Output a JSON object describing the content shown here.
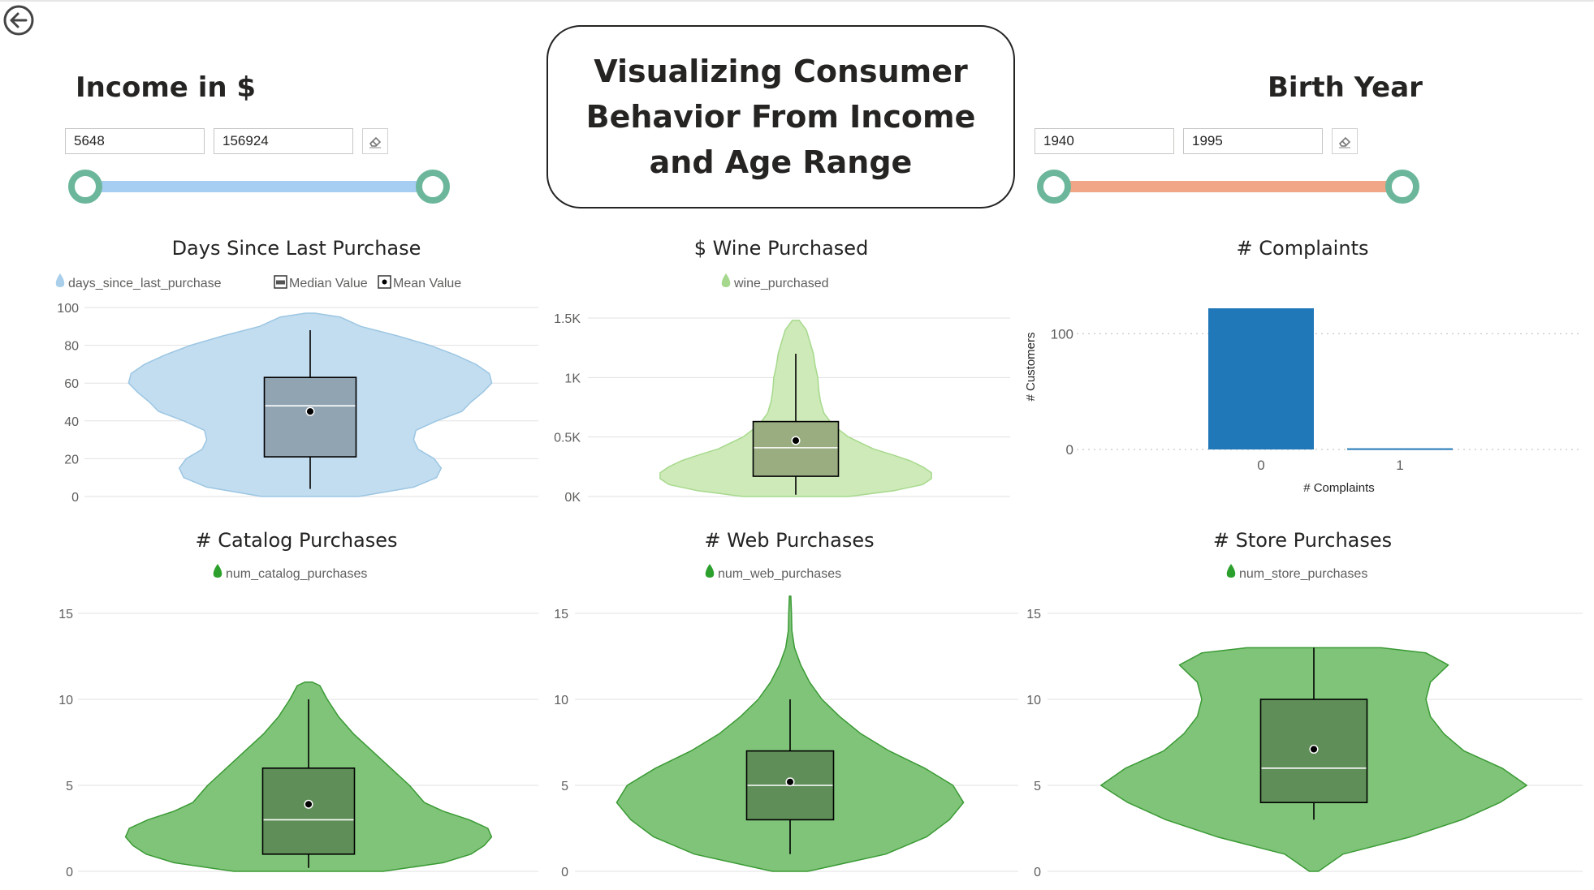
{
  "page_title": "Visualizing Consumer Behavior From Income and Age Range",
  "back_button": {
    "icon": "back-arrow-icon"
  },
  "income_slicer": {
    "title": "Income in $",
    "min_value": "5648",
    "max_value": "156924",
    "min_fraction": 0,
    "max_fraction": 1,
    "color": "#a6cdf2",
    "eraser_icon": "eraser-icon"
  },
  "birth_year_slicer": {
    "title": "Birth Year",
    "min_value": "1940",
    "max_value": "1995",
    "min_fraction": 0,
    "max_fraction": 1,
    "color": "#f0a687",
    "eraser_icon": "eraser-icon"
  },
  "handle_color": "#6cb79b",
  "chart_data": [
    {
      "id": "days",
      "type": "violin",
      "title": "Days Since Last Purchase",
      "legend": [
        "days_since_last_purchase",
        "Median Value",
        "Mean Value"
      ],
      "legend_color": "#a9cfea",
      "fill": "#c2ddef",
      "stroke": "#9cc6e3",
      "box_fill": "#91a4b2",
      "y_ticks": [
        0,
        20,
        40,
        60,
        80,
        100
      ],
      "y_tick_labels": [
        "0",
        "20",
        "40",
        "60",
        "80",
        "100"
      ],
      "ylim": [
        0,
        100
      ],
      "grid": true,
      "density": [
        [
          0,
          0.21
        ],
        [
          5,
          0.45
        ],
        [
          10,
          0.55
        ],
        [
          15,
          0.57
        ],
        [
          20,
          0.54
        ],
        [
          25,
          0.47
        ],
        [
          30,
          0.45
        ],
        [
          35,
          0.46
        ],
        [
          40,
          0.55
        ],
        [
          45,
          0.66
        ],
        [
          50,
          0.7
        ],
        [
          55,
          0.75
        ],
        [
          60,
          0.79
        ],
        [
          65,
          0.78
        ],
        [
          70,
          0.72
        ],
        [
          75,
          0.63
        ],
        [
          80,
          0.52
        ],
        [
          85,
          0.38
        ],
        [
          90,
          0.22
        ],
        [
          95,
          0.13
        ],
        [
          97,
          0.02
        ]
      ],
      "box": {
        "min": 4,
        "q1": 21,
        "median": 48,
        "q3": 63,
        "max": 88,
        "mean": 45
      }
    },
    {
      "id": "wine",
      "type": "violin",
      "title": "$ Wine Purchased",
      "legend": [
        "wine_purchased"
      ],
      "legend_color": "#a5d88c",
      "fill": "#cdeab8",
      "stroke": "#a7d98d",
      "box_fill": "#99ad81",
      "y_ticks": [
        0,
        500,
        1000,
        1500
      ],
      "y_tick_labels": [
        "0K",
        "0.5K",
        "1K",
        "1.5K"
      ],
      "ylim": [
        0,
        1500
      ],
      "grid": true,
      "density": [
        [
          0,
          0.3
        ],
        [
          50,
          0.56
        ],
        [
          100,
          0.72
        ],
        [
          150,
          0.77
        ],
        [
          200,
          0.77
        ],
        [
          250,
          0.72
        ],
        [
          300,
          0.65
        ],
        [
          350,
          0.55
        ],
        [
          400,
          0.44
        ],
        [
          500,
          0.3
        ],
        [
          600,
          0.21
        ],
        [
          700,
          0.16
        ],
        [
          800,
          0.14
        ],
        [
          900,
          0.13
        ],
        [
          1000,
          0.125
        ],
        [
          1100,
          0.11
        ],
        [
          1200,
          0.1
        ],
        [
          1300,
          0.08
        ],
        [
          1400,
          0.06
        ],
        [
          1480,
          0.02
        ]
      ],
      "box": {
        "min": 15,
        "q1": 170,
        "median": 410,
        "q3": 630,
        "max": 1200,
        "mean": 470
      }
    },
    {
      "id": "complaints",
      "type": "bar",
      "title": "# Complaints",
      "xlabel": "# Complaints",
      "ylabel": "# Customers",
      "categories": [
        "0",
        "1"
      ],
      "values": [
        122,
        1
      ],
      "bar_color": "#2178b8",
      "y_ticks": [
        0,
        100
      ],
      "ylim": [
        0,
        122
      ],
      "grid": true
    },
    {
      "id": "catalog",
      "type": "violin",
      "title": "# Catalog Purchases",
      "legend": [
        "num_catalog_purchases"
      ],
      "legend_color": "#2ca02c",
      "fill": "#80c47a",
      "stroke": "#3a9a34",
      "box_fill": "#5f8e58",
      "y_ticks": [
        0,
        5,
        10,
        15
      ],
      "y_tick_labels": [
        "0",
        "5",
        "10",
        "15"
      ],
      "ylim": [
        0,
        15
      ],
      "grid": true,
      "density": [
        [
          0,
          0.4
        ],
        [
          0.5,
          0.72
        ],
        [
          1,
          0.87
        ],
        [
          1.5,
          0.94
        ],
        [
          2,
          0.98
        ],
        [
          2.5,
          0.96
        ],
        [
          3,
          0.86
        ],
        [
          3.5,
          0.72
        ],
        [
          4,
          0.62
        ],
        [
          5,
          0.54
        ],
        [
          6,
          0.44
        ],
        [
          7,
          0.34
        ],
        [
          8,
          0.24
        ],
        [
          9,
          0.16
        ],
        [
          10,
          0.1
        ],
        [
          10.8,
          0.06
        ],
        [
          11,
          0.02
        ]
      ],
      "box": {
        "min": 0.2,
        "q1": 1,
        "median": 3,
        "q3": 6,
        "max": 10,
        "mean": 3.9
      }
    },
    {
      "id": "web",
      "type": "violin",
      "title": "# Web Purchases",
      "legend": [
        "num_web_purchases"
      ],
      "legend_color": "#2ca02c",
      "fill": "#80c47a",
      "stroke": "#3a9a34",
      "box_fill": "#5f8e58",
      "y_ticks": [
        0,
        5,
        10,
        15
      ],
      "y_tick_labels": [
        "0",
        "5",
        "10",
        "15"
      ],
      "ylim": [
        0,
        15
      ],
      "grid": true,
      "density": [
        [
          0,
          0.1
        ],
        [
          1,
          0.54
        ],
        [
          2,
          0.77
        ],
        [
          3,
          0.9
        ],
        [
          4,
          0.98
        ],
        [
          5,
          0.92
        ],
        [
          6,
          0.76
        ],
        [
          7,
          0.56
        ],
        [
          8,
          0.4
        ],
        [
          9,
          0.28
        ],
        [
          10,
          0.18
        ],
        [
          11,
          0.11
        ],
        [
          12,
          0.06
        ],
        [
          13,
          0.025
        ],
        [
          14,
          0.01
        ],
        [
          15,
          0.008
        ],
        [
          16,
          0.004
        ]
      ],
      "box": {
        "min": 1,
        "q1": 3,
        "median": 5,
        "q3": 7,
        "max": 10,
        "mean": 5.2
      }
    },
    {
      "id": "store",
      "type": "violin",
      "title": "# Store Purchases",
      "legend": [
        "num_store_purchases"
      ],
      "legend_color": "#2ca02c",
      "fill": "#80c47a",
      "stroke": "#3a9a34",
      "box_fill": "#5f8e58",
      "y_ticks": [
        0,
        5,
        10,
        15
      ],
      "y_tick_labels": [
        "0",
        "5",
        "10",
        "15"
      ],
      "ylim": [
        0,
        15
      ],
      "grid": true,
      "density": [
        [
          0,
          0.02
        ],
        [
          1,
          0.13
        ],
        [
          2,
          0.43
        ],
        [
          3,
          0.66
        ],
        [
          4,
          0.83
        ],
        [
          5,
          0.95
        ],
        [
          6,
          0.84
        ],
        [
          7,
          0.67
        ],
        [
          8,
          0.58
        ],
        [
          9,
          0.52
        ],
        [
          10,
          0.5
        ],
        [
          11,
          0.52
        ],
        [
          12,
          0.6
        ],
        [
          12.7,
          0.5
        ],
        [
          13,
          0.3
        ]
      ],
      "box": {
        "min": 3,
        "q1": 4,
        "median": 6,
        "q3": 10,
        "max": 13,
        "mean": 7.1
      }
    }
  ]
}
